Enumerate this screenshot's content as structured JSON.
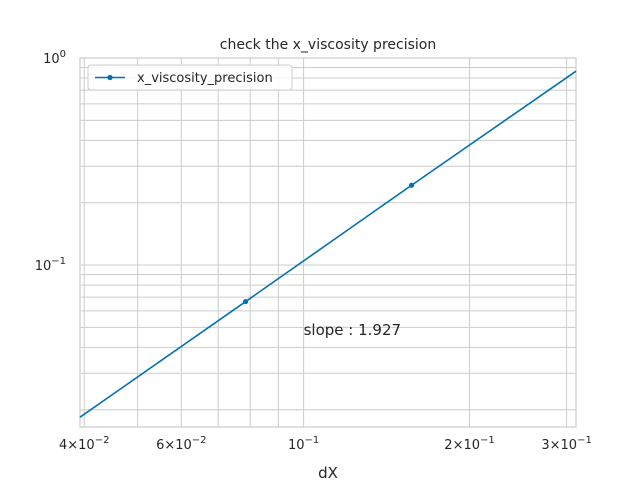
{
  "chart_data": {
    "type": "line",
    "title": "check the x_viscosity precision",
    "xlabel": "dX",
    "ylabel": "",
    "xscale": "log",
    "yscale": "log",
    "xlim": [
      0.0393,
      0.312
    ],
    "ylim": [
      0.0165,
      1.0
    ],
    "grid": true,
    "legend_position": "upper-left",
    "series": [
      {
        "name": "x_viscosity_precision",
        "color": "#0072b2",
        "marker": "dot",
        "x": [
          0.0393,
          0.0785,
          0.157,
          0.312
        ],
        "y": [
          0.0184,
          0.0666,
          0.2429,
          0.8636
        ],
        "markers": [
          false,
          true,
          true,
          false
        ]
      }
    ],
    "annotation": {
      "text": "slope : 1.927",
      "x": 0.1,
      "y": 0.046
    },
    "x_ticks": [
      {
        "value": 0.04,
        "mantissa": "4",
        "exponent": "−2"
      },
      {
        "value": 0.06,
        "mantissa": "6",
        "exponent": "−2"
      },
      {
        "value": 0.1,
        "mantissa": "",
        "exponent": "−1"
      },
      {
        "value": 0.2,
        "mantissa": "2",
        "exponent": "−1"
      },
      {
        "value": 0.3,
        "mantissa": "3",
        "exponent": "−1"
      }
    ],
    "y_ticks": [
      {
        "value": 1.0,
        "exponent": "0"
      },
      {
        "value": 0.1,
        "exponent": "−1"
      }
    ]
  }
}
